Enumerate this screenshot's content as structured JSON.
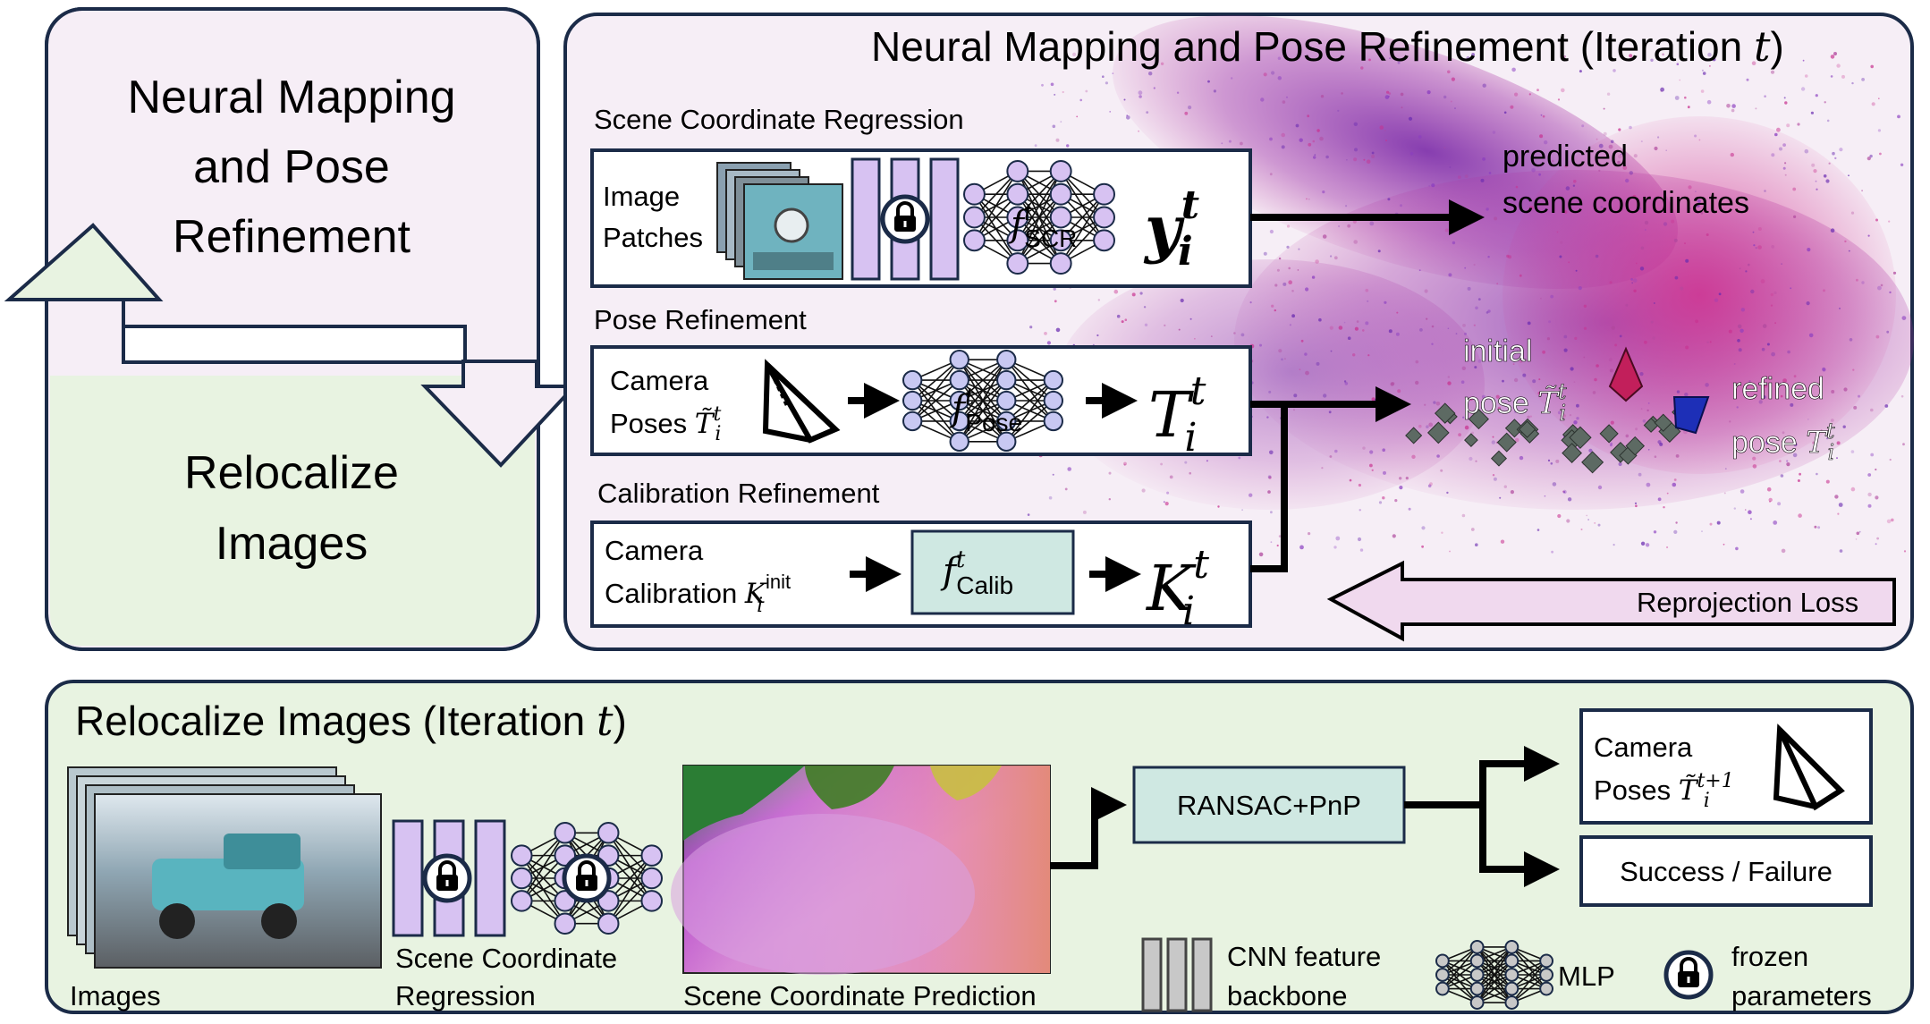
{
  "cycle": {
    "top_label_lines": [
      "Neural Mapping",
      "and Pose",
      "Refinement"
    ],
    "bottom_label_lines": [
      "Relocalize",
      "Images"
    ]
  },
  "mapping": {
    "title": "Neural Mapping and Pose Refinement (Iteration ",
    "title_var": "t",
    "title_close": ")",
    "scr": {
      "section_label": "Scene Coordinate Regression",
      "input_lines": [
        "Image",
        "Patches"
      ],
      "net_sym": "f",
      "net_sup": "t",
      "net_sub": "SCR",
      "output_sym": "y",
      "output_sup": "t",
      "output_sub": "i",
      "result_lines": [
        "predicted",
        "scene coordinates"
      ]
    },
    "pose": {
      "section_label": "Pose Refinement",
      "input_line1": "Camera",
      "input_line2": "Poses ",
      "input_sym": "T̃",
      "input_sup": "t",
      "input_sub": "i",
      "net_sym": "f",
      "net_sup": "t",
      "net_sub": "Pose",
      "output_sym": "T",
      "output_sup": "t",
      "output_sub": "i"
    },
    "calib": {
      "section_label": "Calibration Refinement",
      "input_line1": "Camera",
      "input_line2": "Calibration ",
      "input_sym": "K",
      "input_sup": "init",
      "input_sub": "i",
      "net_sym": "f",
      "net_sup": "t",
      "net_sub": "Calib",
      "output_sym": "K",
      "output_sup": "t",
      "output_sub": "i"
    },
    "initial_pose": {
      "line1": "initial",
      "line2": "pose ",
      "sym": "T̃",
      "sup": "t",
      "sub": "i"
    },
    "refined_pose": {
      "line1": "refined",
      "line2": "pose ",
      "sym": "T",
      "sup": "t",
      "sub": "i"
    },
    "loss_label": "Reprojection Loss"
  },
  "reloc": {
    "title": "Relocalize Images (Iteration ",
    "title_var": "t",
    "title_close": ")",
    "images_label": "Images",
    "scr_label_lines": [
      "Scene Coordinate",
      "Regression"
    ],
    "prediction_label": "Scene Coordinate Prediction",
    "solver_label": "RANSAC+PnP",
    "out_poses_line1": "Camera",
    "out_poses_line2": "Poses ",
    "out_poses_sym": "T̃",
    "out_poses_sup": "t+1",
    "out_poses_sub": "i",
    "success_label": "Success / Failure"
  },
  "legend": {
    "cnn_lines": [
      "CNN feature",
      "backbone"
    ],
    "mlp_label": "MLP",
    "frozen_lines": [
      "frozen",
      "parameters"
    ]
  },
  "colors": {
    "panel_stroke": "#1b2b48",
    "mapping_fill": "#f6eef6",
    "reloc_fill": "#e8f3e1",
    "cnn_fill": "#d7c2f2",
    "mlp_fill": "#c8c8f2",
    "solver_fill": "#cfe8e2",
    "calib_fill": "#cfe8e2",
    "legend_grey": "#c8c8c8",
    "point_purple": "#6a2bb0",
    "point_magenta": "#c8308f",
    "initial_pose_marker": "#c21f5b",
    "refined_pose_marker": "#1d2fb7"
  },
  "icons": [
    "lock-icon",
    "camera-frustum-icon",
    "mlp-network-icon",
    "cnn-backbone-icon",
    "image-stack-icon"
  ]
}
